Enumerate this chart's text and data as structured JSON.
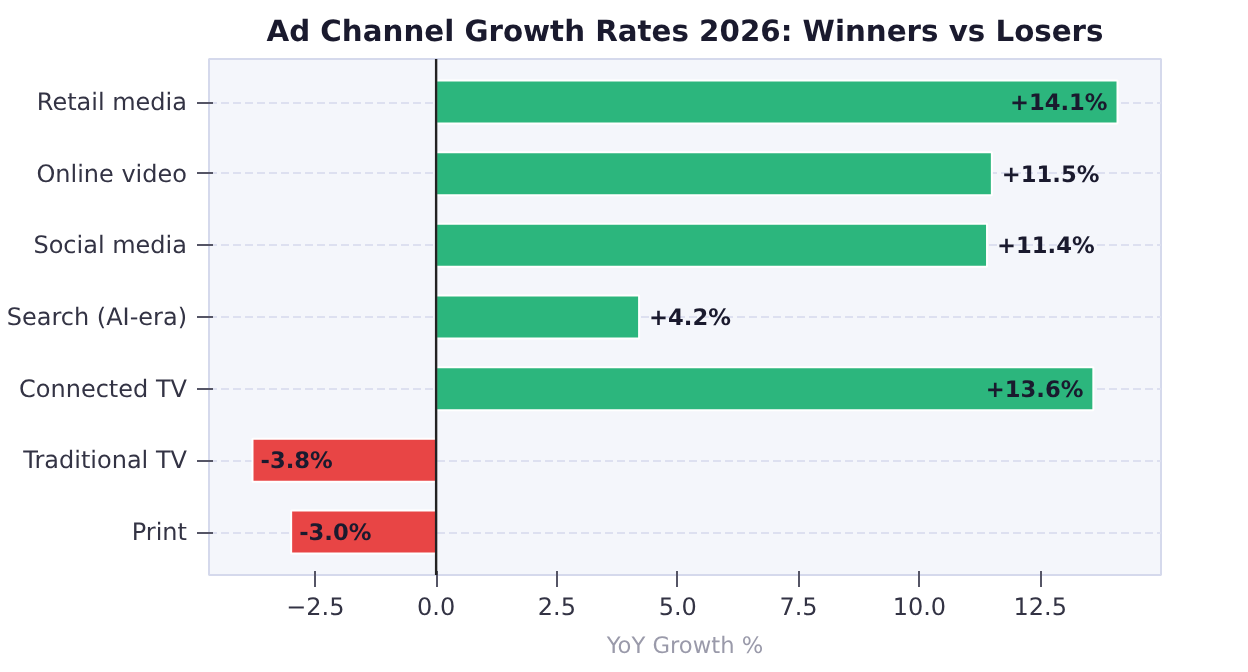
{
  "chart_data": {
    "type": "bar",
    "orientation": "horizontal",
    "title": "Ad Channel Growth Rates 2026: Winners vs Losers",
    "xlabel": "YoY Growth %",
    "categories": [
      "Retail media",
      "Online video",
      "Social media",
      "Search (AI-era)",
      "Connected TV",
      "Traditional TV",
      "Print"
    ],
    "values": [
      14.1,
      11.5,
      11.4,
      4.2,
      13.6,
      -3.8,
      -3.0
    ],
    "colors": [
      "#2cb67d",
      "#2cb67d",
      "#2cb67d",
      "#2cb67d",
      "#2cb67d",
      "#e84545",
      "#e84545"
    ],
    "value_labels": [
      "+14.1%",
      "+11.5%",
      "+11.4%",
      "+4.2%",
      "+13.6%",
      "-3.8%",
      "-3.0%"
    ],
    "xlim": [
      -4.7,
      15.0
    ],
    "xticks": [
      {
        "value": -2.5,
        "label": "−2.5"
      },
      {
        "value": 0,
        "label": "0.0"
      },
      2.5,
      {
        "value": 5,
        "label": "5.0"
      },
      7.5,
      {
        "value": 10,
        "label": "10.0"
      },
      12.5
    ],
    "ref_lines": [
      {
        "axis": "x",
        "value": 0,
        "color": "#222222"
      }
    ],
    "grid": "y"
  }
}
